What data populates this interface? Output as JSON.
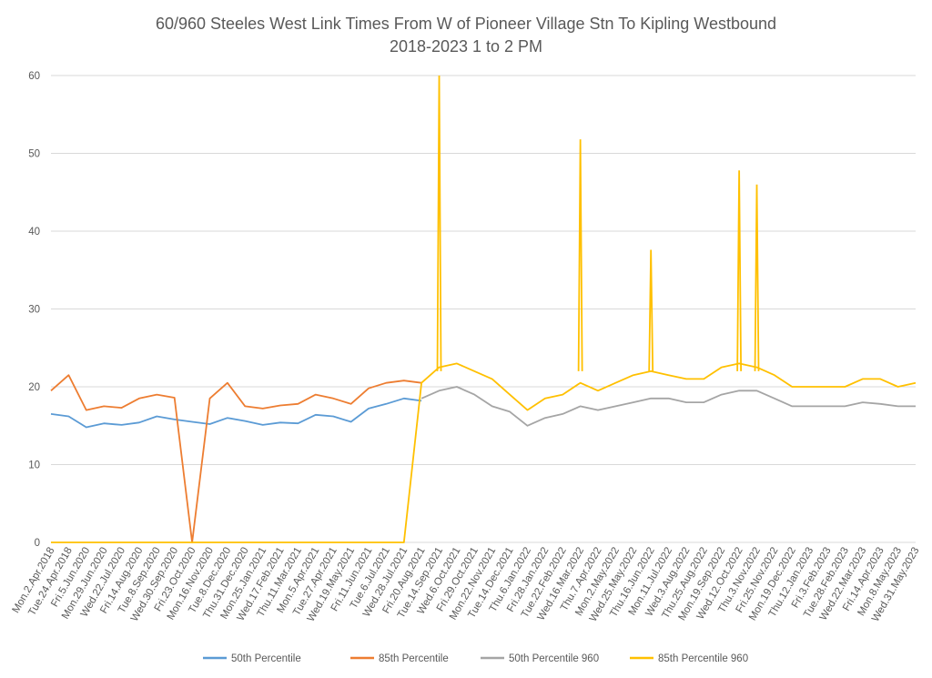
{
  "chart_data": {
    "type": "line",
    "title": "60/960 Steeles West Link Times From W of Pioneer Village Stn To Kipling Westbound",
    "subtitle": "2018-2023 1 to 2 PM",
    "xlabel": "",
    "ylabel": "",
    "ylim": [
      0,
      60
    ],
    "yticks": [
      0,
      10,
      20,
      30,
      40,
      50,
      60
    ],
    "grid": true,
    "legend_position": "bottom",
    "categories": [
      "Mon.2.Apr.2018",
      "Tue.24.Apr.2018",
      "Fri.5.Jun.2020",
      "Mon.29.Jun.2020",
      "Wed.22.Jul.2020",
      "Fri.14.Aug.2020",
      "Tue.8.Sep.2020",
      "Wed.30.Sep.2020",
      "Fri.23.Oct.2020",
      "Mon.16.Nov.2020",
      "Tue.8.Dec.2020",
      "Thu.31.Dec.2020",
      "Mon.25.Jan.2021",
      "Wed.17.Feb.2021",
      "Thu.11.Mar.2021",
      "Mon.5.Apr.2021",
      "Tue.27.Apr.2021",
      "Wed.19.May.2021",
      "Fri.11.Jun.2021",
      "Tue.6.Jul.2021",
      "Wed.28.Jul.2021",
      "Fri.20.Aug.2021",
      "Tue.14.Sep.2021",
      "Wed.6.Oct.2021",
      "Fri.29.Oct.2021",
      "Mon.22.Nov.2021",
      "Tue.14.Dec.2021",
      "Thu.6.Jan.2022",
      "Fri.28.Jan.2022",
      "Tue.22.Feb.2022",
      "Wed.16.Mar.2022",
      "Thu.7.Apr.2022",
      "Mon.2.May.2022",
      "Wed.25.May.2022",
      "Thu.16.Jun.2022",
      "Mon.11.Jul.2022",
      "Wed.3.Aug.2022",
      "Thu.25.Aug.2022",
      "Mon.19.Sep.2022",
      "Wed.12.Oct.2022",
      "Thu.3.Nov.2022",
      "Fri.25.Nov.2022",
      "Mon.19.Dec.2022",
      "Thu.12.Jan.2023",
      "Fri.3.Feb.2023",
      "Tue.28.Feb.2023",
      "Wed.22.Mar.2023",
      "Fri.14.Apr.2023",
      "Mon.8.May.2023",
      "Wed.31.May.2023"
    ],
    "series": [
      {
        "name": "50th Percentile",
        "color": "#5B9BD5",
        "values": [
          16.5,
          16.2,
          14.8,
          15.3,
          15.1,
          15.4,
          16.2,
          15.8,
          15.5,
          15.2,
          16.0,
          15.6,
          15.1,
          15.4,
          15.3,
          16.4,
          16.2,
          15.5,
          17.2,
          17.8,
          18.5,
          18.2,
          null,
          null,
          null,
          null,
          null,
          null,
          null,
          null,
          null,
          null,
          null,
          null,
          null,
          null,
          null,
          null,
          null,
          null,
          null,
          null,
          null,
          null,
          null,
          null,
          null,
          null,
          null,
          null
        ]
      },
      {
        "name": "85th Percentile",
        "color": "#ED7D31",
        "values": [
          19.5,
          21.5,
          17.0,
          17.5,
          17.3,
          18.5,
          19.0,
          18.6,
          0,
          18.5,
          20.5,
          17.5,
          17.2,
          17.6,
          17.8,
          19.0,
          18.5,
          17.8,
          19.8,
          20.5,
          20.8,
          20.5,
          null,
          null,
          null,
          null,
          null,
          null,
          null,
          null,
          null,
          null,
          null,
          null,
          null,
          null,
          null,
          null,
          null,
          null,
          null,
          null,
          null,
          null,
          null,
          null,
          null,
          null,
          null,
          null
        ]
      },
      {
        "name": "50th Percentile 960",
        "color": "#A5A5A5",
        "values": [
          null,
          null,
          null,
          null,
          null,
          null,
          null,
          null,
          null,
          null,
          null,
          null,
          null,
          null,
          null,
          null,
          null,
          null,
          null,
          null,
          null,
          18.5,
          19.5,
          20.0,
          19.0,
          17.5,
          16.8,
          15.0,
          16.0,
          16.5,
          17.5,
          17.0,
          17.5,
          18.0,
          18.5,
          18.5,
          18.0,
          18.0,
          19.0,
          19.5,
          19.5,
          18.5,
          17.5,
          17.5,
          17.5,
          17.5,
          18.0,
          17.8,
          17.5,
          17.5
        ]
      },
      {
        "name": "85th Percentile 960",
        "color": "#FFC000",
        "values": [
          0,
          0,
          0,
          0,
          0,
          0,
          0,
          0,
          0,
          0,
          0,
          0,
          0,
          0,
          0,
          0,
          0,
          0,
          0,
          0,
          0,
          20.5,
          22.5,
          23.0,
          22.0,
          21.0,
          19.0,
          17.0,
          18.5,
          19.0,
          20.5,
          19.5,
          20.5,
          21.5,
          22.0,
          21.5,
          21.0,
          21.0,
          22.5,
          23.0,
          22.5,
          21.5,
          20.0,
          20.0,
          20.0,
          20.0,
          21.0,
          21.0,
          20.0,
          20.5
        ]
      }
    ],
    "annotations": [
      {
        "series": "85th Percentile 960",
        "x": "Tue.14.Sep.2021",
        "y": 60
      },
      {
        "series": "85th Percentile 960",
        "x": "Wed.16.Mar.2022",
        "y": 51.8
      },
      {
        "series": "85th Percentile 960",
        "x": "Thu.16.Jun.2022",
        "y": 37.6
      },
      {
        "series": "85th Percentile 960",
        "x": "Wed.12.Oct.2022",
        "y": 47.8
      },
      {
        "series": "85th Percentile 960",
        "x": "Thu.3.Nov.2022",
        "y": 46.0
      }
    ]
  }
}
